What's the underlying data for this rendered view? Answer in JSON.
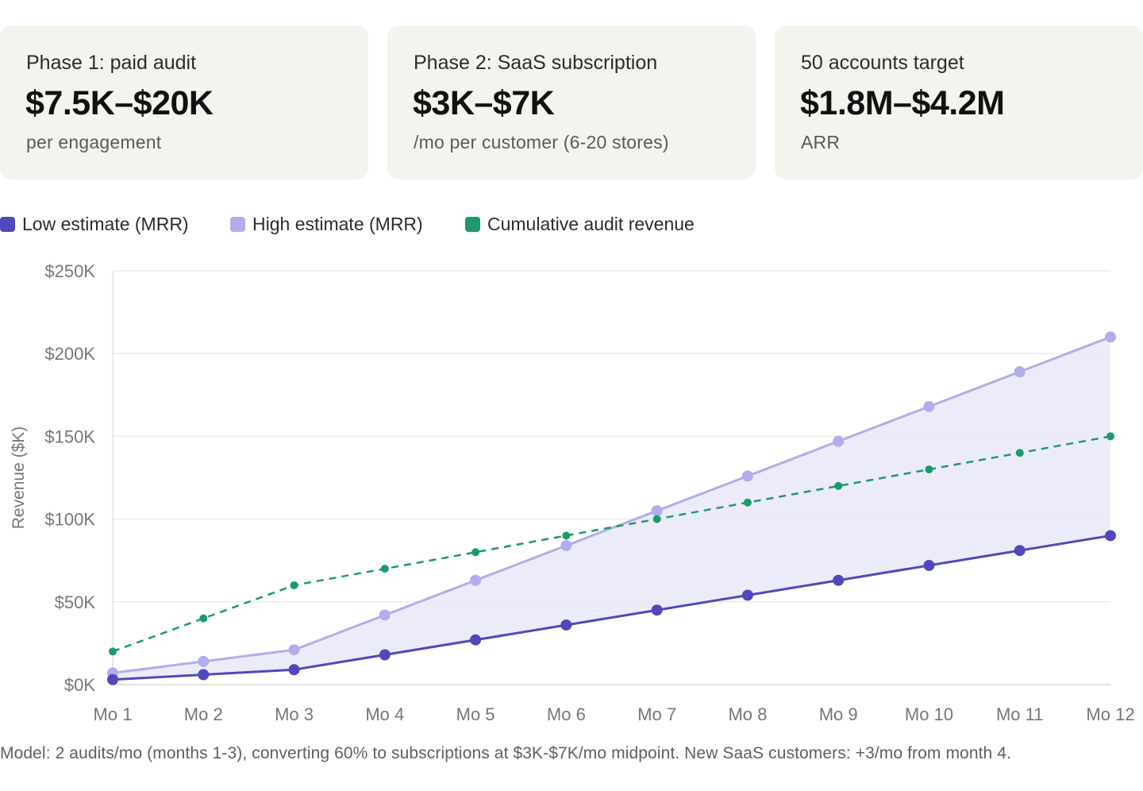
{
  "cards": [
    {
      "label": "Phase 1: paid audit",
      "value": "$7.5K–$20K",
      "sub": "per engagement"
    },
    {
      "label": "Phase 2: SaaS subscription",
      "value": "$3K–$7K",
      "sub": "/mo per customer (6-20 stores)"
    },
    {
      "label": "50 accounts target",
      "value": "$1.8M–$4.2M",
      "sub": "ARR"
    }
  ],
  "legend": [
    {
      "label": "Low estimate (MRR)",
      "color": "#5247bd"
    },
    {
      "label": "High estimate (MRR)",
      "color": "#b3aced"
    },
    {
      "label": "Cumulative audit revenue",
      "color": "#1d9a6c"
    }
  ],
  "chart_data": {
    "type": "line",
    "categories": [
      "Mo 1",
      "Mo 2",
      "Mo 3",
      "Mo 4",
      "Mo 5",
      "Mo 6",
      "Mo 7",
      "Mo 8",
      "Mo 9",
      "Mo 10",
      "Mo 11",
      "Mo 12"
    ],
    "series": [
      {
        "name": "Low estimate (MRR)",
        "values": [
          3,
          6,
          9,
          18,
          27,
          36,
          45,
          54,
          63,
          72,
          81,
          90
        ],
        "color": "#5247bd",
        "style": "solid",
        "fill": "#e9e7f8"
      },
      {
        "name": "High estimate (MRR)",
        "values": [
          7,
          14,
          21,
          42,
          63,
          84,
          105,
          126,
          147,
          168,
          189,
          210
        ],
        "color": "#b3aced",
        "style": "solid"
      },
      {
        "name": "Cumulative audit revenue",
        "values": [
          20,
          40,
          60,
          70,
          80,
          90,
          100,
          110,
          120,
          130,
          140,
          150
        ],
        "color": "#1d9a6c",
        "style": "dashed"
      }
    ],
    "ylabel": "Revenue ($K)",
    "ylim": [
      0,
      250
    ],
    "yticks": [
      0,
      50,
      100,
      150,
      200,
      250
    ],
    "ytick_labels": [
      "$0K",
      "$50K",
      "$100K",
      "$150K",
      "$200K",
      "$250K"
    ],
    "grid": true
  },
  "note": "Model: 2 audits/mo (months 1-3), converting 60% to subscriptions at $3K-$7K/mo midpoint. New SaaS customers: +3/mo from month 4."
}
